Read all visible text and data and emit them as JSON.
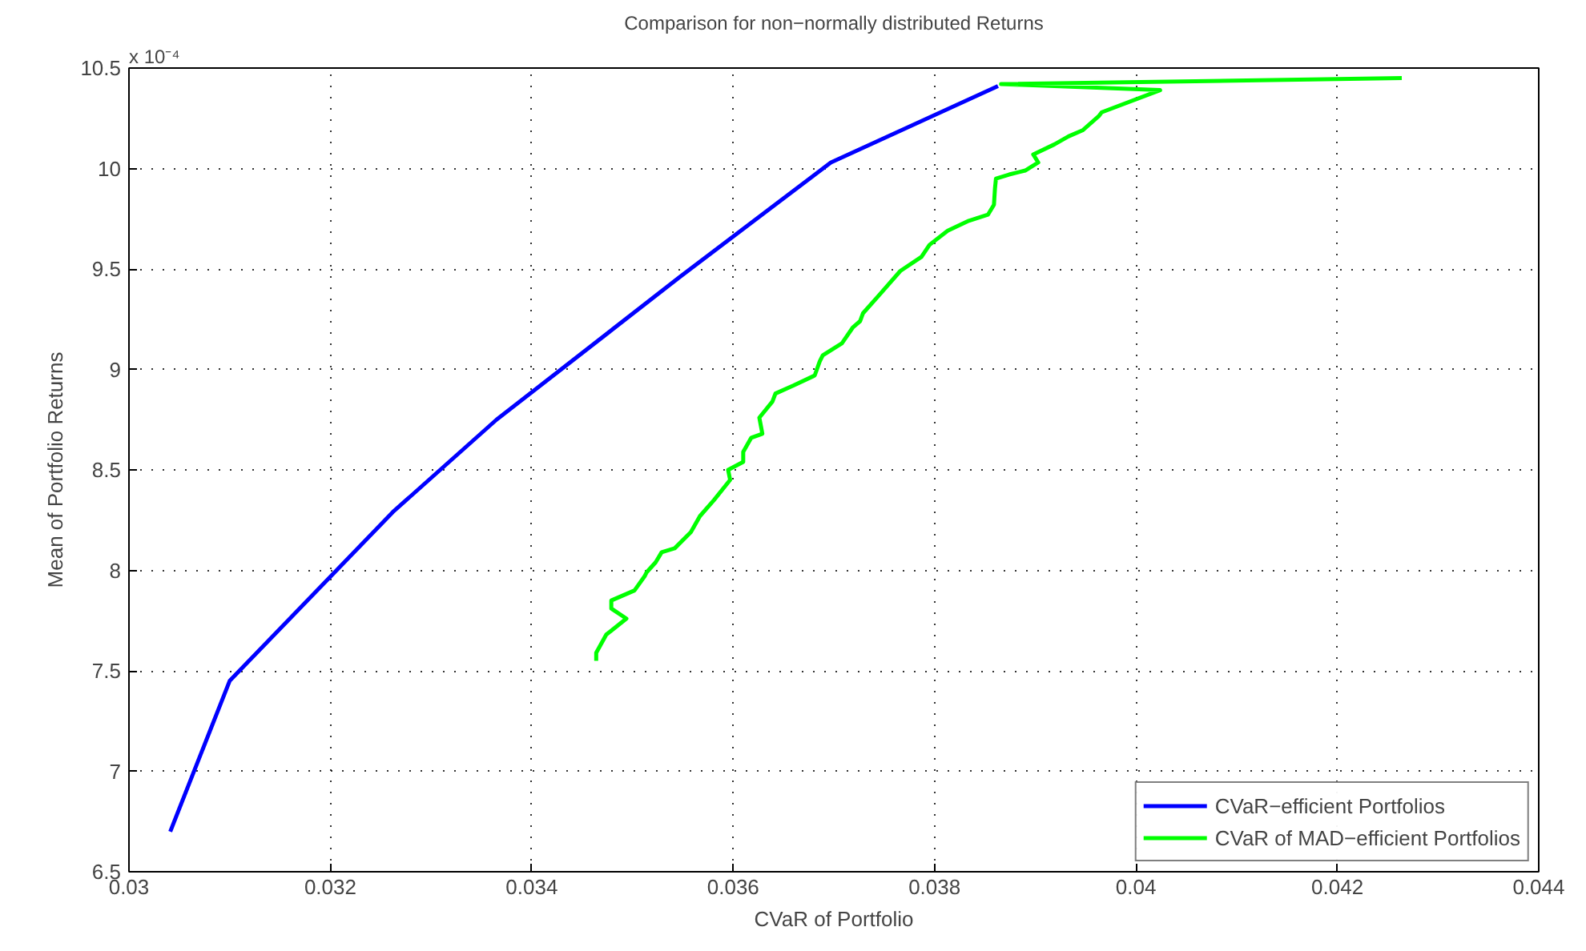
{
  "chart_data": {
    "type": "line",
    "title": "Comparison for non−normally distributed Returns",
    "xlabel": "CVaR of Portfolio",
    "ylabel": "Mean of Portfolio Returns",
    "annotations": [
      "x 10⁻⁴"
    ],
    "xlim": [
      0.03,
      0.044
    ],
    "xticks": [
      0.03,
      0.032,
      0.034,
      0.036,
      0.038,
      0.04,
      0.042,
      0.044
    ],
    "ylim": [
      6.5,
      10.5
    ],
    "yticks": [
      6.5,
      7,
      7.5,
      8,
      8.5,
      9,
      9.5,
      10,
      10.5
    ],
    "grid": true,
    "legend": "bottom right",
    "marker": "none",
    "line_style": "solid",
    "series": [
      {
        "name": "CVaR−efficient Portfolios",
        "color": "#0000ff",
        "x": [
          0.03041,
          0.031,
          0.03262,
          0.03365,
          0.03547,
          0.03697,
          0.03863
        ],
        "values": [
          6.7,
          7.45,
          8.29,
          8.75,
          9.46,
          10.03,
          10.41
        ]
      },
      {
        "name": "CVaR of MAD−efficient Portfolios",
        "color": "#00ff00",
        "x": [
          0.03464,
          0.03464,
          0.03474,
          0.03494,
          0.03479,
          0.03479,
          0.03502,
          0.03512,
          0.03514,
          0.03523,
          0.03529,
          0.03542,
          0.03558,
          0.03567,
          0.03581,
          0.03597,
          0.03595,
          0.0361,
          0.0361,
          0.03618,
          0.03629,
          0.03626,
          0.03639,
          0.03642,
          0.0366,
          0.03681,
          0.03686,
          0.03689,
          0.03708,
          0.03719,
          0.03726,
          0.03729,
          0.03745,
          0.03766,
          0.03787,
          0.03795,
          0.03813,
          0.03834,
          0.03853,
          0.03859,
          0.0386,
          0.03861,
          0.03874,
          0.0389,
          0.03903,
          0.03898,
          0.03919,
          0.03933,
          0.03947,
          0.03963,
          0.03966,
          0.04024,
          0.03866,
          0.04264
        ],
        "values": [
          7.55,
          7.59,
          7.68,
          7.76,
          7.81,
          7.85,
          7.9,
          7.97,
          7.99,
          8.04,
          8.09,
          8.11,
          8.19,
          8.27,
          8.35,
          8.45,
          8.5,
          8.54,
          8.59,
          8.66,
          8.68,
          8.76,
          8.84,
          8.88,
          8.92,
          8.97,
          9.04,
          9.07,
          9.13,
          9.21,
          9.24,
          9.28,
          9.37,
          9.49,
          9.56,
          9.62,
          9.69,
          9.74,
          9.77,
          9.82,
          9.9,
          9.95,
          9.97,
          9.99,
          10.03,
          10.07,
          10.12,
          10.16,
          10.19,
          10.26,
          10.28,
          10.39,
          10.42,
          10.45
        ]
      }
    ]
  }
}
